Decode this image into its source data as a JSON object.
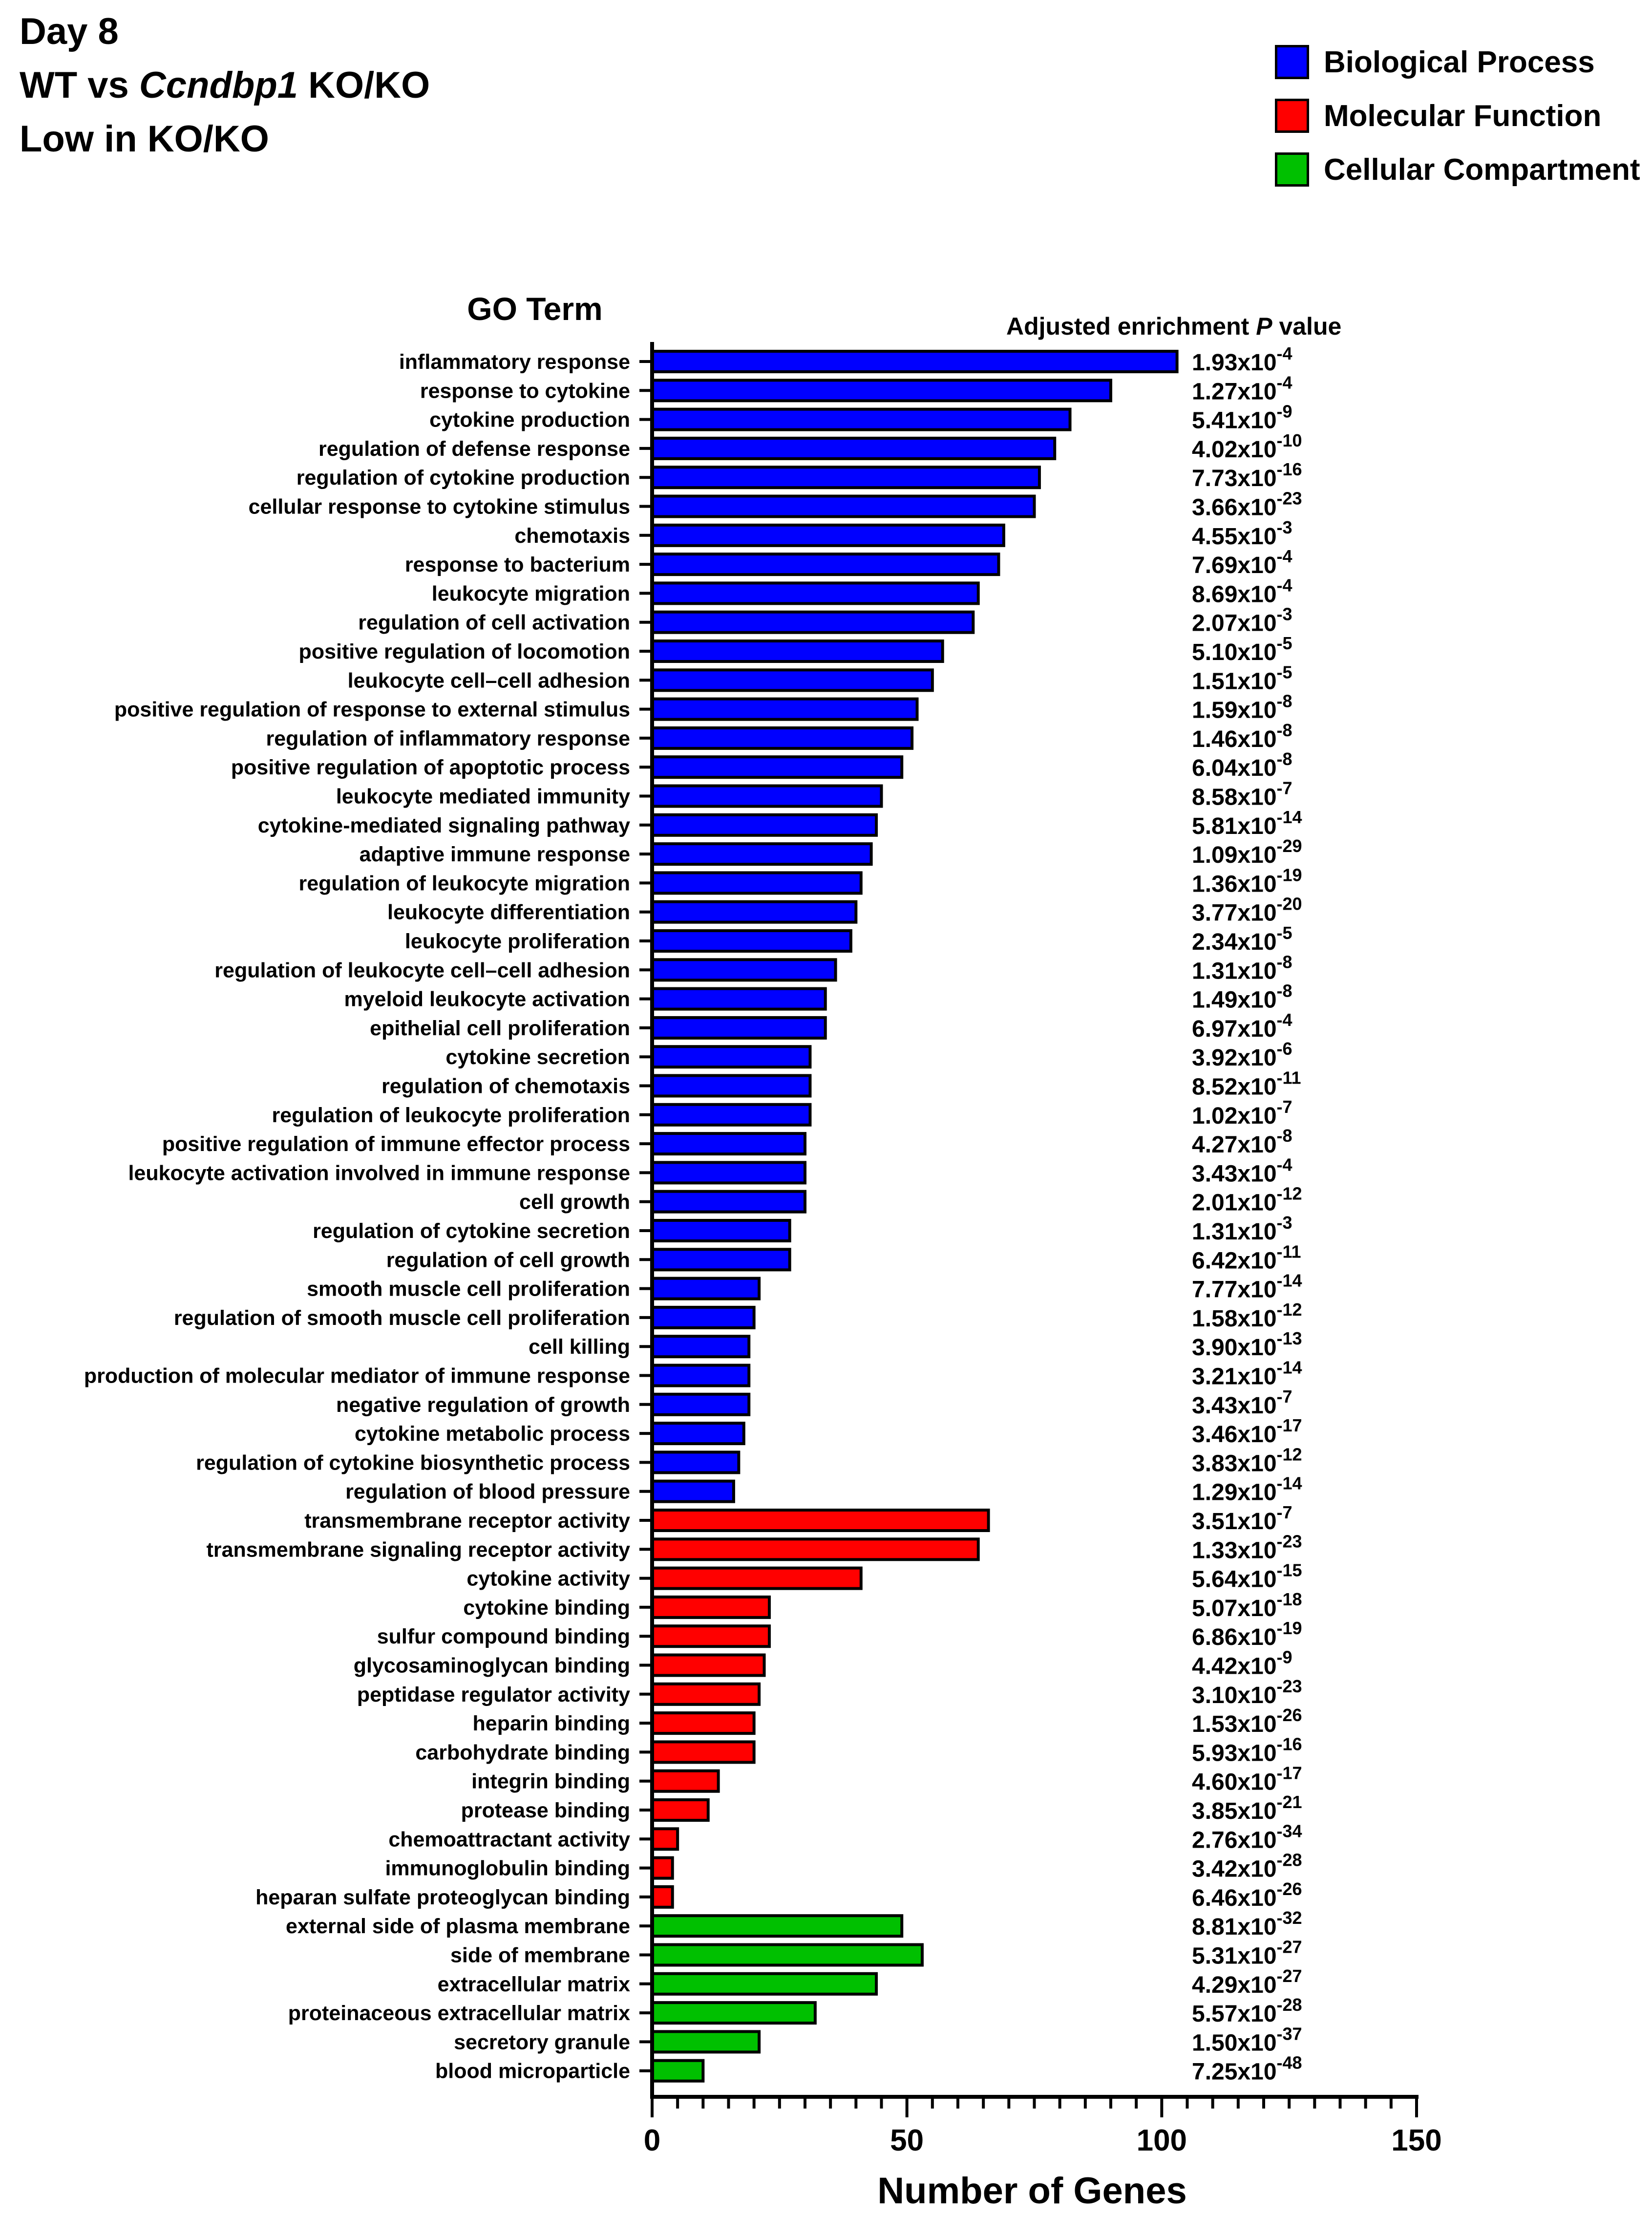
{
  "title": {
    "line1": "Day 8",
    "line2_prefix": "WT vs ",
    "line2_italic": "Ccndbp1",
    "line2_suffix": " KO/KO",
    "line3": "Low in KO/KO"
  },
  "colors": {
    "biological_process": "#0000ff",
    "molecular_function": "#ff0000",
    "cellular_compartment": "#00c000"
  },
  "legend": [
    {
      "label": "Biological Process",
      "color": "#0000ff"
    },
    {
      "label": "Molecular Function",
      "color": "#ff0000"
    },
    {
      "label": "Cellular Compartment",
      "color": "#00c000"
    }
  ],
  "chart_data": {
    "type": "bar",
    "orientation": "horizontal",
    "ylabel": "GO Term",
    "xlabel": "Number of Genes",
    "pvalue_header_prefix": "Adjusted enrichment ",
    "pvalue_header_italic": "P",
    "pvalue_header_suffix": " value",
    "xlim": [
      0,
      150
    ],
    "xticks": [
      0,
      50,
      100,
      150
    ],
    "minor_tick_step": 5,
    "legend_position": "top-right",
    "bars": [
      {
        "term": "inflammatory response",
        "value": 103,
        "category": "biological_process",
        "p_mantissa": "1.93",
        "p_exp": "-4"
      },
      {
        "term": "response to cytokine",
        "value": 90,
        "category": "biological_process",
        "p_mantissa": "1.27",
        "p_exp": "-4"
      },
      {
        "term": "cytokine production",
        "value": 82,
        "category": "biological_process",
        "p_mantissa": "5.41",
        "p_exp": "-9"
      },
      {
        "term": "regulation of defense response",
        "value": 79,
        "category": "biological_process",
        "p_mantissa": "4.02",
        "p_exp": "-10"
      },
      {
        "term": "regulation of cytokine production",
        "value": 76,
        "category": "biological_process",
        "p_mantissa": "7.73",
        "p_exp": "-16"
      },
      {
        "term": "cellular response to cytokine stimulus",
        "value": 75,
        "category": "biological_process",
        "p_mantissa": "3.66",
        "p_exp": "-23"
      },
      {
        "term": "chemotaxis",
        "value": 69,
        "category": "biological_process",
        "p_mantissa": "4.55",
        "p_exp": "-3"
      },
      {
        "term": "response to bacterium",
        "value": 68,
        "category": "biological_process",
        "p_mantissa": "7.69",
        "p_exp": "-4"
      },
      {
        "term": "leukocyte migration",
        "value": 64,
        "category": "biological_process",
        "p_mantissa": "8.69",
        "p_exp": "-4"
      },
      {
        "term": "regulation of cell activation",
        "value": 63,
        "category": "biological_process",
        "p_mantissa": "2.07",
        "p_exp": "-3"
      },
      {
        "term": "positive regulation of locomotion",
        "value": 57,
        "category": "biological_process",
        "p_mantissa": "5.10",
        "p_exp": "-5"
      },
      {
        "term": "leukocyte cell–cell adhesion",
        "value": 55,
        "category": "biological_process",
        "p_mantissa": "1.51",
        "p_exp": "-5"
      },
      {
        "term": "positive regulation of response to external stimulus",
        "value": 52,
        "category": "biological_process",
        "p_mantissa": "1.59",
        "p_exp": "-8"
      },
      {
        "term": "regulation of inflammatory response",
        "value": 51,
        "category": "biological_process",
        "p_mantissa": "1.46",
        "p_exp": "-8"
      },
      {
        "term": "positive regulation of apoptotic process",
        "value": 49,
        "category": "biological_process",
        "p_mantissa": "6.04",
        "p_exp": "-8"
      },
      {
        "term": "leukocyte mediated immunity",
        "value": 45,
        "category": "biological_process",
        "p_mantissa": "8.58",
        "p_exp": "-7"
      },
      {
        "term": "cytokine-mediated signaling pathway",
        "value": 44,
        "category": "biological_process",
        "p_mantissa": "5.81",
        "p_exp": "-14"
      },
      {
        "term": "adaptive immune response",
        "value": 43,
        "category": "biological_process",
        "p_mantissa": "1.09",
        "p_exp": "-29"
      },
      {
        "term": "regulation of leukocyte migration",
        "value": 41,
        "category": "biological_process",
        "p_mantissa": "1.36",
        "p_exp": "-19"
      },
      {
        "term": "leukocyte differentiation",
        "value": 40,
        "category": "biological_process",
        "p_mantissa": "3.77",
        "p_exp": "-20"
      },
      {
        "term": "leukocyte proliferation",
        "value": 39,
        "category": "biological_process",
        "p_mantissa": "2.34",
        "p_exp": "-5"
      },
      {
        "term": "regulation of leukocyte cell–cell adhesion",
        "value": 36,
        "category": "biological_process",
        "p_mantissa": "1.31",
        "p_exp": "-8"
      },
      {
        "term": "myeloid leukocyte activation",
        "value": 34,
        "category": "biological_process",
        "p_mantissa": "1.49",
        "p_exp": "-8"
      },
      {
        "term": "epithelial cell proliferation",
        "value": 34,
        "category": "biological_process",
        "p_mantissa": "6.97",
        "p_exp": "-4"
      },
      {
        "term": "cytokine secretion",
        "value": 31,
        "category": "biological_process",
        "p_mantissa": "3.92",
        "p_exp": "-6"
      },
      {
        "term": "regulation of chemotaxis",
        "value": 31,
        "category": "biological_process",
        "p_mantissa": "8.52",
        "p_exp": "-11"
      },
      {
        "term": "regulation of leukocyte proliferation",
        "value": 31,
        "category": "biological_process",
        "p_mantissa": "1.02",
        "p_exp": "-7"
      },
      {
        "term": "positive regulation of immune effector process",
        "value": 30,
        "category": "biological_process",
        "p_mantissa": "4.27",
        "p_exp": "-8"
      },
      {
        "term": "leukocyte activation involved in immune response",
        "value": 30,
        "category": "biological_process",
        "p_mantissa": "3.43",
        "p_exp": "-4"
      },
      {
        "term": "cell growth",
        "value": 30,
        "category": "biological_process",
        "p_mantissa": "2.01",
        "p_exp": "-12"
      },
      {
        "term": "regulation of cytokine secretion",
        "value": 27,
        "category": "biological_process",
        "p_mantissa": "1.31",
        "p_exp": "-3"
      },
      {
        "term": "regulation of cell growth",
        "value": 27,
        "category": "biological_process",
        "p_mantissa": "6.42",
        "p_exp": "-11"
      },
      {
        "term": "smooth muscle cell proliferation",
        "value": 21,
        "category": "biological_process",
        "p_mantissa": "7.77",
        "p_exp": "-14"
      },
      {
        "term": "regulation of smooth muscle cell proliferation",
        "value": 20,
        "category": "biological_process",
        "p_mantissa": "1.58",
        "p_exp": "-12"
      },
      {
        "term": "cell killing",
        "value": 19,
        "category": "biological_process",
        "p_mantissa": "3.90",
        "p_exp": "-13"
      },
      {
        "term": "production of molecular mediator of immune response",
        "value": 19,
        "category": "biological_process",
        "p_mantissa": "3.21",
        "p_exp": "-14"
      },
      {
        "term": "negative regulation of growth",
        "value": 19,
        "category": "biological_process",
        "p_mantissa": "3.43",
        "p_exp": "-7"
      },
      {
        "term": "cytokine metabolic process",
        "value": 18,
        "category": "biological_process",
        "p_mantissa": "3.46",
        "p_exp": "-17"
      },
      {
        "term": "regulation of cytokine biosynthetic process",
        "value": 17,
        "category": "biological_process",
        "p_mantissa": "3.83",
        "p_exp": "-12"
      },
      {
        "term": "regulation of blood pressure",
        "value": 16,
        "category": "biological_process",
        "p_mantissa": "1.29",
        "p_exp": "-14"
      },
      {
        "term": "transmembrane receptor activity",
        "value": 66,
        "category": "molecular_function",
        "p_mantissa": "3.51",
        "p_exp": "-7"
      },
      {
        "term": "transmembrane signaling receptor activity",
        "value": 64,
        "category": "molecular_function",
        "p_mantissa": "1.33",
        "p_exp": "-23"
      },
      {
        "term": "cytokine activity",
        "value": 41,
        "category": "molecular_function",
        "p_mantissa": "5.64",
        "p_exp": "-15"
      },
      {
        "term": "cytokine binding",
        "value": 23,
        "category": "molecular_function",
        "p_mantissa": "5.07",
        "p_exp": "-18"
      },
      {
        "term": "sulfur compound binding",
        "value": 23,
        "category": "molecular_function",
        "p_mantissa": "6.86",
        "p_exp": "-19"
      },
      {
        "term": "glycosaminoglycan binding",
        "value": 22,
        "category": "molecular_function",
        "p_mantissa": "4.42",
        "p_exp": "-9"
      },
      {
        "term": "peptidase regulator activity",
        "value": 21,
        "category": "molecular_function",
        "p_mantissa": "3.10",
        "p_exp": "-23"
      },
      {
        "term": "heparin binding",
        "value": 20,
        "category": "molecular_function",
        "p_mantissa": "1.53",
        "p_exp": "-26"
      },
      {
        "term": "carbohydrate binding",
        "value": 20,
        "category": "molecular_function",
        "p_mantissa": "5.93",
        "p_exp": "-16"
      },
      {
        "term": "integrin binding",
        "value": 13,
        "category": "molecular_function",
        "p_mantissa": "4.60",
        "p_exp": "-17"
      },
      {
        "term": "protease binding",
        "value": 11,
        "category": "molecular_function",
        "p_mantissa": "3.85",
        "p_exp": "-21"
      },
      {
        "term": "chemoattractant activity",
        "value": 5,
        "category": "molecular_function",
        "p_mantissa": "2.76",
        "p_exp": "-34"
      },
      {
        "term": "immunoglobulin binding",
        "value": 4,
        "category": "molecular_function",
        "p_mantissa": "3.42",
        "p_exp": "-28"
      },
      {
        "term": "heparan sulfate proteoglycan binding",
        "value": 4,
        "category": "molecular_function",
        "p_mantissa": "6.46",
        "p_exp": "-26"
      },
      {
        "term": "external side of plasma membrane",
        "value": 49,
        "category": "cellular_compartment",
        "p_mantissa": "8.81",
        "p_exp": "-32"
      },
      {
        "term": "side of membrane",
        "value": 53,
        "category": "cellular_compartment",
        "p_mantissa": "5.31",
        "p_exp": "-27"
      },
      {
        "term": "extracellular matrix",
        "value": 44,
        "category": "cellular_compartment",
        "p_mantissa": "4.29",
        "p_exp": "-27"
      },
      {
        "term": "proteinaceous extracellular matrix",
        "value": 32,
        "category": "cellular_compartment",
        "p_mantissa": "5.57",
        "p_exp": "-28"
      },
      {
        "term": "secretory granule",
        "value": 21,
        "category": "cellular_compartment",
        "p_mantissa": "1.50",
        "p_exp": "-37"
      },
      {
        "term": "blood microparticle",
        "value": 10,
        "category": "cellular_compartment",
        "p_mantissa": "7.25",
        "p_exp": "-48"
      }
    ]
  }
}
